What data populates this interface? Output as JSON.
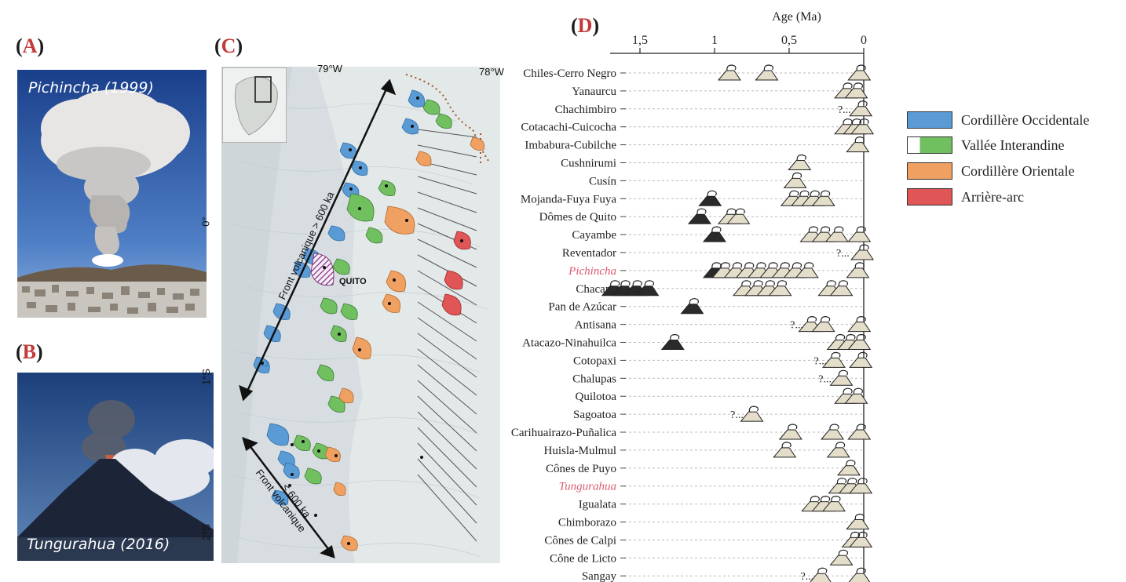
{
  "panels": {
    "a": {
      "prefix": "(",
      "letter": "A",
      "suffix": ")"
    },
    "b": {
      "prefix": "(",
      "letter": "B",
      "suffix": ")"
    },
    "c": {
      "prefix": "(",
      "letter": "C",
      "suffix": ")"
    },
    "d": {
      "prefix": "(",
      "letter": "D",
      "suffix": ")"
    }
  },
  "photos": {
    "a": {
      "caption": "Pichincha (1999)"
    },
    "b": {
      "caption": "Tungurahua (2016)"
    }
  },
  "map": {
    "lon_labels": [
      "79°W",
      "78°W"
    ],
    "lat_labels": [
      "0°",
      "1°S",
      "2°S"
    ],
    "city_label": "QUITO",
    "front_north_label": "Front volcanique > 600 ka",
    "front_south_label_1": "Front volcanique",
    "front_south_label_2": "< 600 ka"
  },
  "legend": [
    {
      "label": "Cordillère Occidentale",
      "color": "#5b9bd5"
    },
    {
      "label": "Vallée Interandine",
      "color": "#70c060"
    },
    {
      "label": "Cordillère Orientale",
      "color": "#f0a060"
    },
    {
      "label": "Arrière-arc",
      "color": "#e05555"
    }
  ],
  "chart_data": {
    "type": "timeline",
    "title": "Age (Ma)",
    "axis_range": [
      1.7,
      0
    ],
    "ticks": [
      {
        "value": 1.5,
        "label": "1,5"
      },
      {
        "value": 1.0,
        "label": "1"
      },
      {
        "value": 0.5,
        "label": "0,5"
      },
      {
        "value": 0.0,
        "label": "0"
      }
    ],
    "volcanoes": [
      {
        "name": "Chiles-Cerro Negro",
        "icons": [
          0.9,
          0.65,
          0.03
        ],
        "q": null
      },
      {
        "name": "Yanaurcu",
        "icons": [
          0.12,
          0.05
        ],
        "q": null
      },
      {
        "name": "Chachimbiro",
        "icons": [
          0.02
        ],
        "q": 0.13
      },
      {
        "name": "Cotacachi-Cuicocha",
        "icons": [
          0.12,
          0.06,
          0.01
        ],
        "q": null
      },
      {
        "name": "Imbabura-Cubilche",
        "icons": [
          0.04
        ],
        "q": null
      },
      {
        "name": "Cushnirumi",
        "icons": [
          0.43
        ],
        "q": null
      },
      {
        "name": "Cusín",
        "icons": [
          0.46
        ],
        "q": null
      },
      {
        "name": "Mojanda-Fuya Fuya",
        "icons": [
          1.03,
          0.48,
          0.41,
          0.34,
          0.27
        ],
        "q": null
      },
      {
        "name": "Dômes de Quito",
        "icons": [
          1.1,
          0.9,
          0.84
        ],
        "q": null
      },
      {
        "name": "Cayambe",
        "icons": [
          1.0,
          0.35,
          0.27,
          0.18,
          0.03
        ],
        "q": null
      },
      {
        "name": "Reventador",
        "icons": [
          0.01
        ],
        "q": 0.14
      },
      {
        "name": "Pichincha",
        "icons": [
          1.0,
          0.94,
          0.86,
          0.78,
          0.7,
          0.62,
          0.54,
          0.46,
          0.38,
          0.04
        ],
        "q": null
      },
      {
        "name": "Chacana",
        "icons": [
          1.68,
          1.61,
          1.53,
          1.45,
          0.8,
          0.72,
          0.64,
          0.56,
          0.23,
          0.15
        ],
        "q": null
      },
      {
        "name": "Pan de Azúcar",
        "icons": [
          1.15
        ],
        "q": null
      },
      {
        "name": "Antisana",
        "icons": [
          0.36,
          0.27,
          0.03
        ],
        "q": 0.45
      },
      {
        "name": "Atacazo-Ninahuilca",
        "icons": [
          1.28,
          0.17,
          0.1,
          0.03
        ],
        "q": null
      },
      {
        "name": "Cotopaxi",
        "icons": [
          0.2,
          0.02
        ],
        "q": 0.29
      },
      {
        "name": "Chalupas",
        "icons": [
          0.15
        ],
        "q": 0.26
      },
      {
        "name": "Quilotoa",
        "icons": [
          0.12,
          0.05
        ],
        "q": null
      },
      {
        "name": "Sagoatoa",
        "icons": [
          0.75
        ],
        "q": 0.85
      },
      {
        "name": "Carihuairazo-Puñalica",
        "icons": [
          0.49,
          0.21,
          0.03
        ],
        "q": null
      },
      {
        "name": "Huisla-Mulmul",
        "icons": [
          0.53,
          0.17
        ],
        "q": null
      },
      {
        "name": "Cônes de Puyo",
        "icons": [
          0.1
        ],
        "q": null
      },
      {
        "name": "Tungurahua",
        "icons": [
          0.16,
          0.09,
          0.02
        ],
        "q": null
      },
      {
        "name": "Igualata",
        "icons": [
          0.34,
          0.27,
          0.2
        ],
        "q": null
      },
      {
        "name": "Chimborazo",
        "icons": [
          0.04
        ],
        "q": null
      },
      {
        "name": "Cônes de Calpi",
        "icons": [
          0.07,
          0.02
        ],
        "q": null
      },
      {
        "name": "Cône de Licto",
        "icons": [
          0.15
        ],
        "q": null
      },
      {
        "name": "Sangay",
        "icons": [
          0.29,
          0.03
        ],
        "q": 0.38
      }
    ],
    "highlighted": [
      "Pichincha",
      "Tungurahua"
    ],
    "colors": {
      "highlight": "#d95b6f",
      "icon_fill": "#e4ddca",
      "icon_dark": "#2a2a2a"
    }
  }
}
